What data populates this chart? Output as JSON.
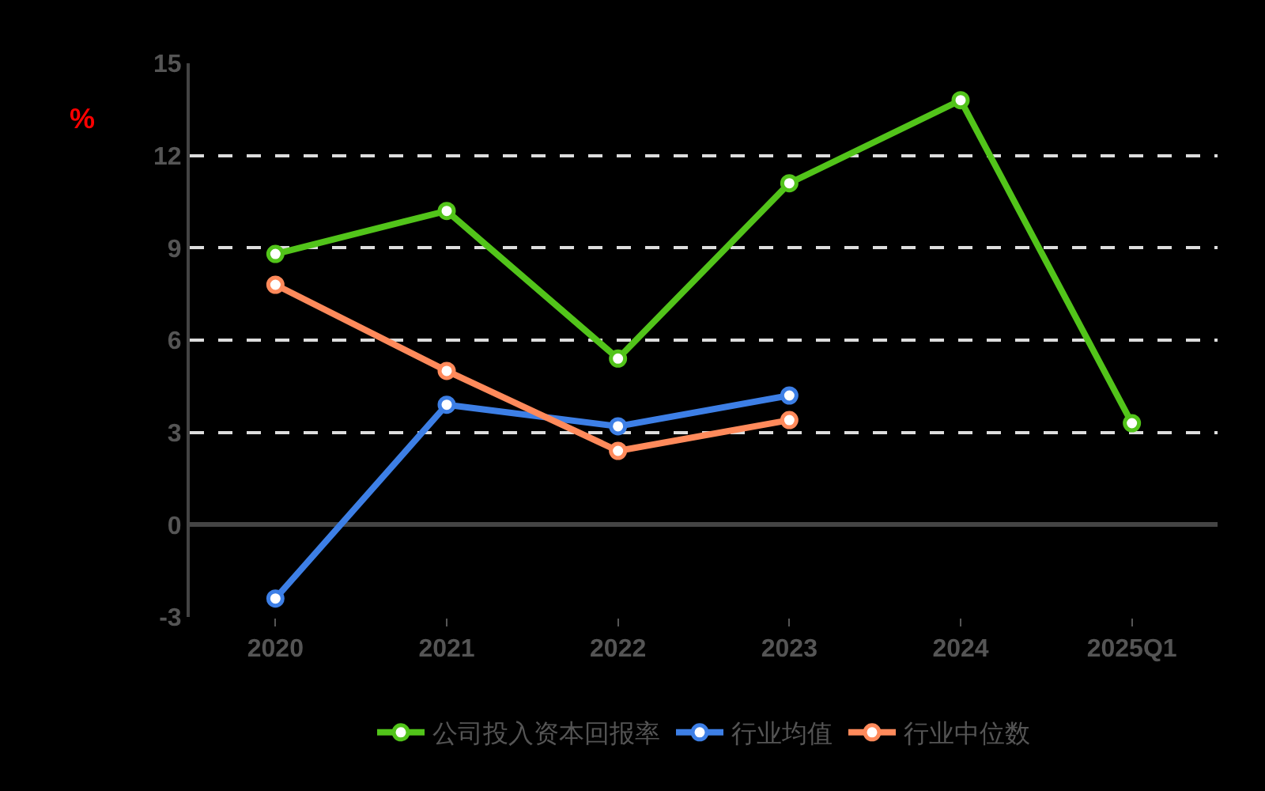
{
  "chart_data": {
    "type": "line",
    "ylabel": "%",
    "categories": [
      "2020",
      "2021",
      "2022",
      "2023",
      "2024",
      "2025Q1"
    ],
    "series": [
      {
        "name": "公司投入资本回报率",
        "color": "#52c41a",
        "values": [
          8.8,
          10.2,
          5.4,
          11.1,
          13.8,
          3.3
        ]
      },
      {
        "name": "行业均值",
        "color": "#3d7fe6",
        "values": [
          -2.4,
          3.9,
          3.2,
          4.2,
          null,
          null
        ]
      },
      {
        "name": "行业中位数",
        "color": "#ff8a5b",
        "values": [
          7.8,
          5.0,
          2.4,
          3.4,
          null,
          null
        ]
      }
    ],
    "ylim": [
      -3,
      15
    ],
    "yticks": [
      -3,
      0,
      3,
      6,
      9,
      12,
      15
    ],
    "grid": "y",
    "legend": "bottom",
    "marker": "circle",
    "line_style": "solid"
  }
}
